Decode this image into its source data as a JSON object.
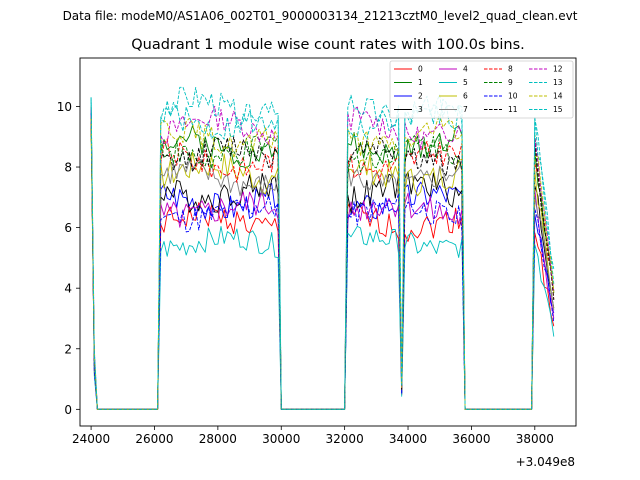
{
  "suptitle": "Data file: modeM0/AS1A06_002T01_9000003134_21213cztM0_level2_quad_clean.evt",
  "chart_data": {
    "type": "line",
    "title": "Quadrant 1 module wise count rates with 100.0s bins.",
    "xlabel": "",
    "ylabel": "",
    "x_offset_label": "+3.049e8",
    "xlim": [
      23650,
      39300
    ],
    "ylim": [
      -0.55,
      11.6
    ],
    "xticks": [
      24000,
      26000,
      28000,
      30000,
      32000,
      34000,
      36000,
      38000
    ],
    "xtick_labels": [
      "24000",
      "26000",
      "28000",
      "30000",
      "32000",
      "34000",
      "36000",
      "38000"
    ],
    "yticks": [
      0,
      2,
      4,
      6,
      8,
      10
    ],
    "ytick_labels": [
      "0",
      "2",
      "4",
      "6",
      "8",
      "10"
    ],
    "legend_position": "top-right",
    "envelope_x": [
      24000,
      24100,
      24200,
      26100,
      26200,
      29900,
      30000,
      32000,
      32100,
      33700,
      33800,
      33900,
      35700,
      35800,
      37900,
      38000,
      38600
    ],
    "envelope_y": [
      1,
      0.2,
      0,
      0,
      1,
      1,
      0,
      0,
      1,
      1,
      0.08,
      1,
      1,
      0,
      0,
      1,
      0.45
    ],
    "series": [
      {
        "name": "0",
        "color": "#ff0000",
        "dash": "solid",
        "start": 10.0,
        "level": 6.2,
        "amp": 0.45
      },
      {
        "name": "1",
        "color": "#008000",
        "dash": "solid",
        "start": 9.6,
        "level": 8.7,
        "amp": 0.45
      },
      {
        "name": "2",
        "color": "#0000ff",
        "dash": "solid",
        "start": 9.9,
        "level": 6.9,
        "amp": 0.5
      },
      {
        "name": "3",
        "color": "#000000",
        "dash": "solid",
        "start": 9.8,
        "level": 7.2,
        "amp": 0.5
      },
      {
        "name": "4",
        "color": "#bf00bf",
        "dash": "solid",
        "start": 9.5,
        "level": 6.6,
        "amp": 0.5
      },
      {
        "name": "5",
        "color": "#00bfbf",
        "dash": "solid",
        "start": 10.3,
        "level": 5.5,
        "amp": 0.4
      },
      {
        "name": "6",
        "color": "#bfbf00",
        "dash": "solid",
        "start": 9.2,
        "level": 7.8,
        "amp": 0.5
      },
      {
        "name": "7",
        "color": "#808080",
        "dash": "solid",
        "start": 9.4,
        "level": 7.6,
        "amp": 0.45
      },
      {
        "name": "8",
        "color": "#ff0000",
        "dash": "dashed",
        "start": 9.7,
        "level": 8.2,
        "amp": 0.45
      },
      {
        "name": "9",
        "color": "#008000",
        "dash": "dashed",
        "start": 9.6,
        "level": 8.5,
        "amp": 0.45
      },
      {
        "name": "10",
        "color": "#0000ff",
        "dash": "dashed",
        "start": 9.8,
        "level": 6.5,
        "amp": 0.45
      },
      {
        "name": "11",
        "color": "#000000",
        "dash": "dashed",
        "start": 9.6,
        "level": 8.4,
        "amp": 0.45
      },
      {
        "name": "12",
        "color": "#bf00bf",
        "dash": "dashed",
        "start": 9.9,
        "level": 9.3,
        "amp": 0.4
      },
      {
        "name": "13",
        "color": "#00bfbf",
        "dash": "dashed",
        "start": 10.3,
        "level": 9.9,
        "amp": 0.45
      },
      {
        "name": "14",
        "color": "#bfbf00",
        "dash": "dashed",
        "start": 9.6,
        "level": 9.0,
        "amp": 0.45
      },
      {
        "name": "15",
        "color": "#00bfbf",
        "dash": "dashed",
        "start": 10.2,
        "level": 9.6,
        "amp": 0.45
      }
    ]
  }
}
